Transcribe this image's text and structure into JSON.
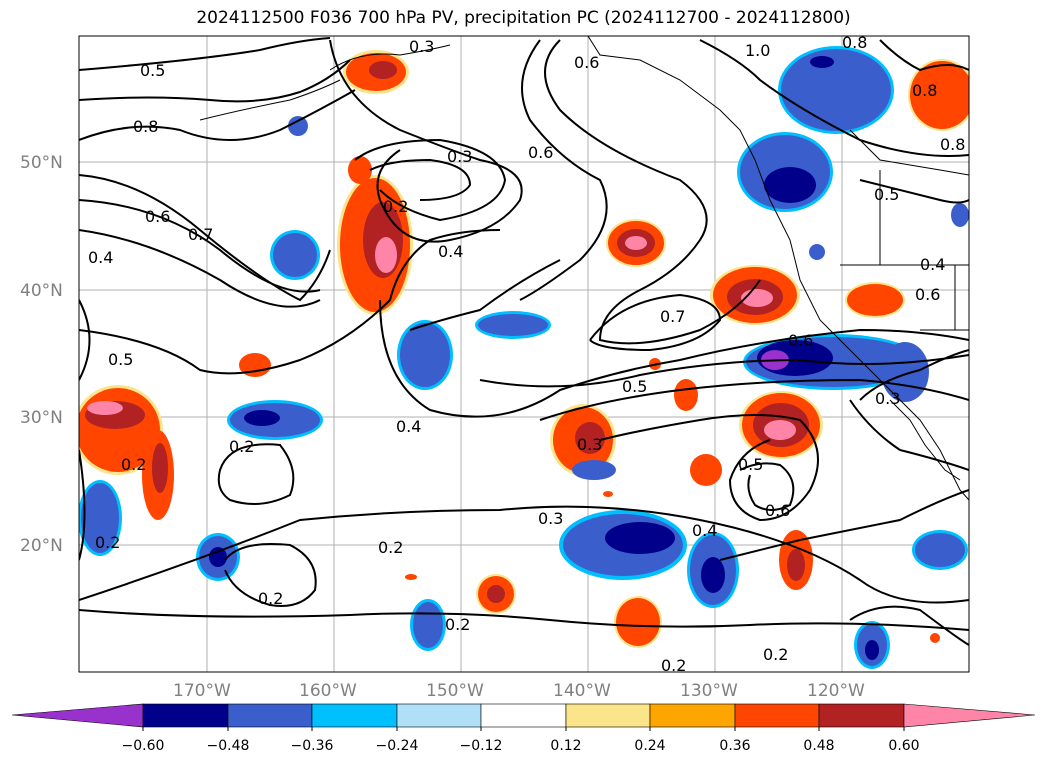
{
  "title": "2024112500 F036 700 hPa PV, precipitation PC (2024112700 - 2024112800)",
  "map": {
    "lat_labels": [
      "50°N",
      "40°N",
      "30°N",
      "20°N"
    ],
    "lon_labels": [
      "170°W",
      "160°W",
      "150°W",
      "140°W",
      "130°W",
      "120°W"
    ],
    "contour_labels": [
      "0.5",
      "0.8",
      "0.6",
      "0.7",
      "0.4",
      "0.5",
      "0.3",
      "0.2",
      "0.4",
      "0.6",
      "0.3",
      "0.6",
      "1.0",
      "0.8",
      "0.8",
      "0.8",
      "0.5",
      "0.6",
      "0.7",
      "0.6",
      "0.5",
      "0.3",
      "0.4",
      "0.3",
      "0.5",
      "0.6",
      "0.4",
      "0.3",
      "0.2",
      "0.2",
      "0.2",
      "0.2",
      "0.2",
      "0.2",
      "0.2",
      "0.2",
      "0.4"
    ],
    "colors": {
      "neg_strong": "#8a2be2",
      "neg_dark": "#00008b",
      "neg_mid": "#3a5fcd",
      "neg_light": "#00bfff",
      "neg_pale": "#add8f5",
      "pos_pale": "#fbe48a",
      "pos_light": "#ffa500",
      "pos_mid": "#ff4500",
      "pos_dark": "#b22222",
      "pos_strong": "#ff7fa8"
    }
  },
  "colorbar": {
    "ticks": [
      "−0.60",
      "−0.48",
      "−0.36",
      "−0.24",
      "−0.12",
      "0.12",
      "0.24",
      "0.36",
      "0.48",
      "0.60"
    ],
    "colors": [
      "#9932cc",
      "#00008b",
      "#3a5fcd",
      "#00bfff",
      "#b0e0f8",
      "#ffffff",
      "#fbe48a",
      "#ffa500",
      "#ff4500",
      "#b22222",
      "#ff85a8"
    ]
  }
}
